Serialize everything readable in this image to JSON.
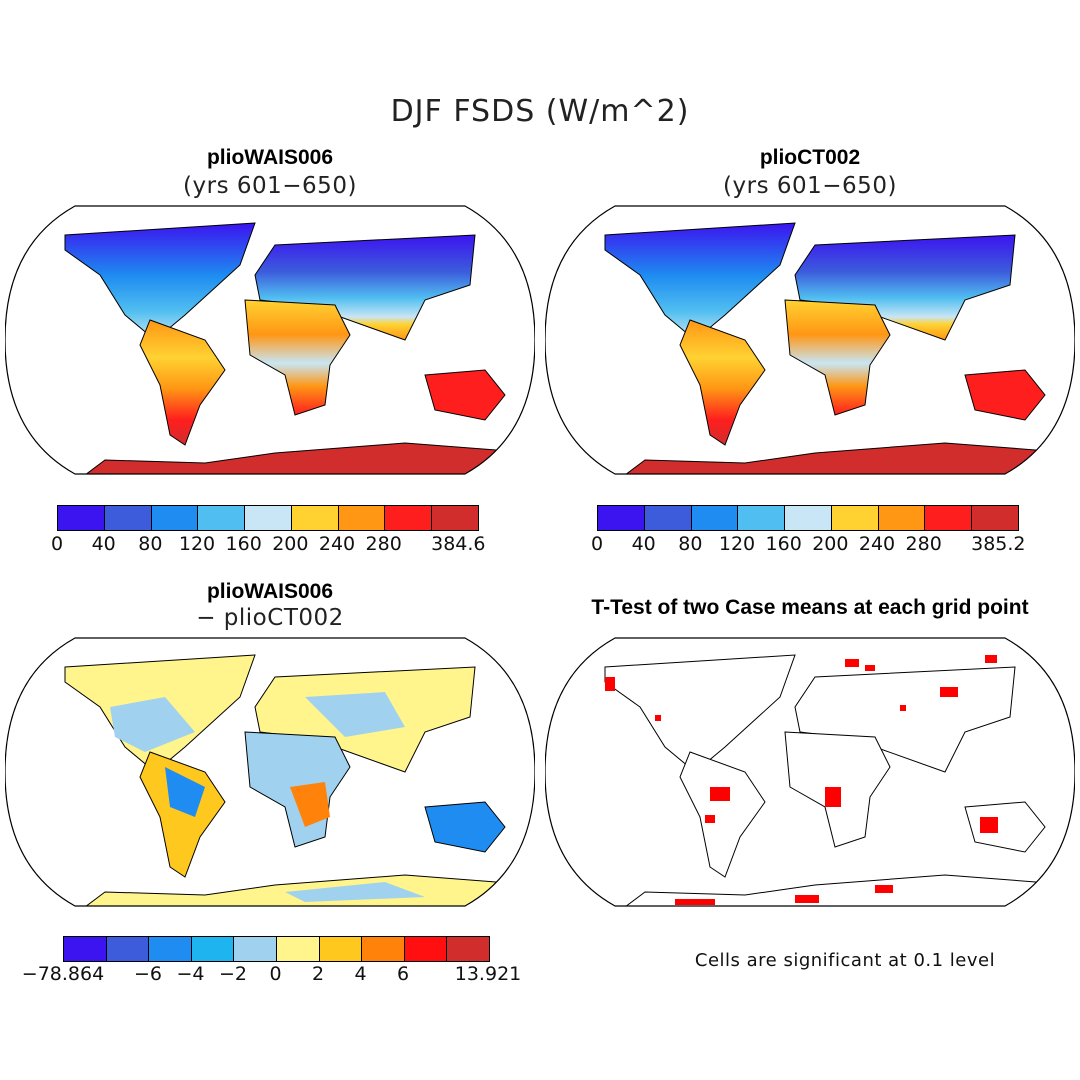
{
  "title": "DJF FSDS (W/m^2)",
  "panels": [
    {
      "title": "plioWAIS006",
      "subtitle": "(yrs 601−650)",
      "colorbar": {
        "ticks": [
          "0",
          "40",
          "80",
          "120",
          "160",
          "200",
          "240",
          "280",
          "384.6"
        ],
        "colors": [
          "#3c14f0",
          "#3c5cdc",
          "#1e8cf0",
          "#50bef0",
          "#c8e6f5",
          "#ffd232",
          "#ff9614",
          "#ff1e1e",
          "#d22d2d"
        ]
      }
    },
    {
      "title": "plioCT002",
      "subtitle": "(yrs 601−650)",
      "colorbar": {
        "ticks": [
          "0",
          "40",
          "80",
          "120",
          "160",
          "200",
          "240",
          "280",
          "385.2"
        ],
        "colors": [
          "#3c14f0",
          "#3c5cdc",
          "#1e8cf0",
          "#50bef0",
          "#c8e6f5",
          "#ffd232",
          "#ff9614",
          "#ff1e1e",
          "#d22d2d"
        ]
      }
    },
    {
      "title": "plioWAIS006",
      "subtitle": "− plioCT002",
      "colorbar": {
        "ticks": [
          "−78.864",
          "−6",
          "−4",
          "−2",
          "0",
          "2",
          "4",
          "6",
          "13.921"
        ],
        "colors": [
          "#3c14f0",
          "#3c5cdc",
          "#1e8cf0",
          "#1eb4f0",
          "#a0d2f0",
          "#fff58c",
          "#ffc81e",
          "#ff820a",
          "#ff0f0f",
          "#d22d2d"
        ]
      }
    },
    {
      "title": "T-Test of two Case means at each grid point",
      "note": "Cells are significant at 0.1 level",
      "significance_color": "#ff0000"
    }
  ]
}
